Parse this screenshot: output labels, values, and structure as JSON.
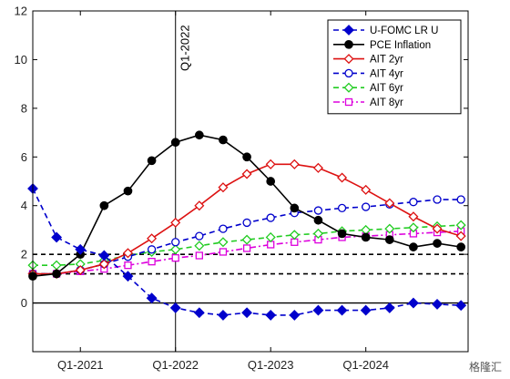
{
  "watermark": "格隆汇",
  "chart_data": {
    "type": "line",
    "title": "",
    "xlabel": "",
    "ylabel": "",
    "x": [
      0,
      1,
      2,
      3,
      4,
      5,
      6,
      7,
      8,
      9,
      10,
      11,
      12,
      13,
      14,
      15,
      16,
      17,
      18
    ],
    "xlim": [
      0,
      18.3
    ],
    "ylim": [
      -2,
      12
    ],
    "yticks": [
      0,
      2,
      4,
      6,
      8,
      10,
      12
    ],
    "xticks": [
      {
        "pos": 2,
        "label": "Q1-2021"
      },
      {
        "pos": 6,
        "label": "Q1-2022"
      },
      {
        "pos": 10,
        "label": "Q1-2023"
      },
      {
        "pos": 14,
        "label": "Q1-2024"
      }
    ],
    "reference_lines": {
      "horizontal_dashed": [
        1.2,
        2.0
      ],
      "horizontal_solid": 0,
      "vertical": {
        "pos": 6,
        "label": "Q1-2022"
      }
    },
    "legend_position": "top-right",
    "series": [
      {
        "name": "U-FOMC LR U",
        "color": "#0000cc",
        "dash": "dash",
        "marker": "diamond",
        "filled": true,
        "values": [
          4.7,
          2.7,
          2.2,
          1.95,
          1.1,
          0.2,
          -0.2,
          -0.4,
          -0.5,
          -0.4,
          -0.5,
          -0.5,
          -0.3,
          -0.3,
          -0.3,
          -0.2,
          0.0,
          -0.05,
          -0.1
        ]
      },
      {
        "name": "PCE Inflation",
        "color": "#000000",
        "dash": "solid",
        "marker": "circle",
        "filled": true,
        "values": [
          1.1,
          1.2,
          2.0,
          4.0,
          4.6,
          5.85,
          6.6,
          6.9,
          6.7,
          6.0,
          5.0,
          3.9,
          3.4,
          2.85,
          2.7,
          2.6,
          2.3,
          2.45,
          2.3
        ]
      },
      {
        "name": "AIT 2yr",
        "color": "#dd1111",
        "dash": "solid",
        "marker": "diamond",
        "filled": false,
        "values": [
          1.2,
          1.2,
          1.35,
          1.6,
          2.05,
          2.65,
          3.3,
          4.0,
          4.75,
          5.3,
          5.7,
          5.7,
          5.55,
          5.15,
          4.65,
          4.1,
          3.55,
          3.05,
          2.75
        ]
      },
      {
        "name": "AIT 4yr",
        "color": "#0000cc",
        "dash": "dash",
        "marker": "circle",
        "filled": false,
        "values": [
          1.2,
          1.2,
          1.35,
          1.6,
          1.9,
          2.2,
          2.5,
          2.75,
          3.05,
          3.3,
          3.5,
          3.7,
          3.8,
          3.9,
          3.95,
          4.05,
          4.15,
          4.25,
          4.25
        ]
      },
      {
        "name": "AIT 6yr",
        "color": "#22cc22",
        "dash": "dash",
        "marker": "diamond",
        "filled": false,
        "values": [
          1.55,
          1.55,
          1.6,
          1.75,
          1.95,
          2.1,
          2.2,
          2.35,
          2.5,
          2.6,
          2.7,
          2.8,
          2.85,
          2.95,
          3.0,
          3.05,
          3.1,
          3.15,
          3.2
        ]
      },
      {
        "name": "AIT 8yr",
        "color": "#dd00dd",
        "dash": "dashdot",
        "marker": "square",
        "filled": false,
        "values": [
          1.2,
          1.2,
          1.3,
          1.4,
          1.55,
          1.7,
          1.85,
          1.95,
          2.1,
          2.25,
          2.4,
          2.5,
          2.6,
          2.7,
          2.75,
          2.8,
          2.85,
          2.9,
          2.95
        ]
      }
    ]
  }
}
